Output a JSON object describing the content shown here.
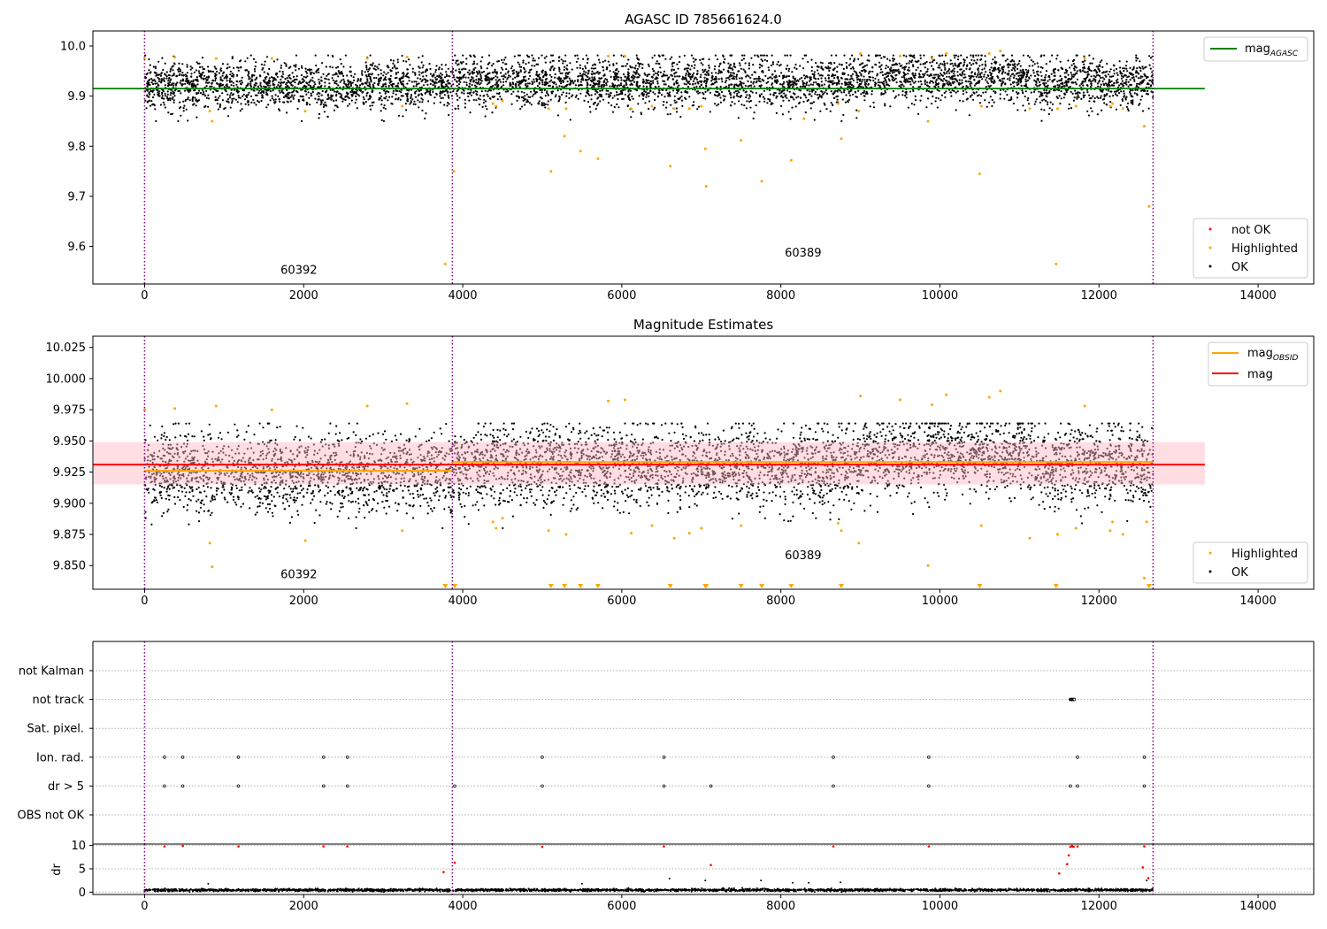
{
  "colors": {
    "ok": "#000000",
    "highlighted": "#ffa500",
    "not_ok": "#ff0000",
    "agasc_line": "#008000",
    "obsid_line": "#ffa500",
    "mag_line": "#ff0000",
    "obs_divider": "#800080",
    "band": "#ffb6c1",
    "grid": "#b0b0b0"
  },
  "chart_data": [
    {
      "type": "scatter",
      "title": "AGASC ID 785661624.0",
      "xlim": [
        -650,
        14700
      ],
      "ylim": [
        9.525,
        10.03
      ],
      "xticks": [
        0,
        2000,
        4000,
        6000,
        8000,
        10000,
        12000,
        14000
      ],
      "xtick_labels": [
        "0",
        "2000",
        "4000",
        "6000",
        "8000",
        "10000",
        "12000",
        "14000"
      ],
      "yticks": [
        9.6,
        9.7,
        9.8,
        9.9,
        10.0
      ],
      "ytick_labels": [
        "9.6",
        "9.7",
        "9.8",
        "9.9",
        "10.0"
      ],
      "obs_boundaries": [
        0,
        3870,
        12680
      ],
      "obs_labels": [
        {
          "text": "60392",
          "x": 1940,
          "y": 9.545
        },
        {
          "text": "60389",
          "x": 8280,
          "y": 9.58
        }
      ],
      "hlines": [
        {
          "name": "mag_AGASC",
          "y": 9.915,
          "x0": -650,
          "x1": 13330,
          "color": "#008000"
        }
      ],
      "ok_points": {
        "x_range": [
          0,
          12680
        ],
        "center": 9.925,
        "spread": 0.075
      },
      "highlighted_points": [
        [
          0,
          9.975
        ],
        [
          380,
          9.978
        ],
        [
          820,
          9.87
        ],
        [
          850,
          9.85
        ],
        [
          900,
          9.975
        ],
        [
          1600,
          9.975
        ],
        [
          2020,
          9.87
        ],
        [
          2800,
          9.975
        ],
        [
          3240,
          9.88
        ],
        [
          3300,
          9.978
        ],
        [
          3780,
          9.565
        ],
        [
          3890,
          9.75
        ],
        [
          4380,
          9.885
        ],
        [
          4420,
          9.88
        ],
        [
          4500,
          9.89
        ],
        [
          5080,
          9.875
        ],
        [
          5110,
          9.75
        ],
        [
          5280,
          9.82
        ],
        [
          5300,
          9.875
        ],
        [
          5480,
          9.79
        ],
        [
          5700,
          9.775
        ],
        [
          5830,
          9.98
        ],
        [
          6040,
          9.98
        ],
        [
          6120,
          9.875
        ],
        [
          6380,
          9.88
        ],
        [
          6610,
          9.76
        ],
        [
          6660,
          9.875
        ],
        [
          6850,
          9.875
        ],
        [
          7000,
          9.88
        ],
        [
          7050,
          9.795
        ],
        [
          7060,
          9.72
        ],
        [
          7500,
          9.812
        ],
        [
          7760,
          9.73
        ],
        [
          8130,
          9.772
        ],
        [
          8290,
          9.855
        ],
        [
          8720,
          9.885
        ],
        [
          8760,
          9.815
        ],
        [
          8980,
          9.87
        ],
        [
          9000,
          9.985
        ],
        [
          9500,
          9.98
        ],
        [
          9850,
          9.85
        ],
        [
          9900,
          9.975
        ],
        [
          10080,
          9.985
        ],
        [
          10500,
          9.745
        ],
        [
          10520,
          9.88
        ],
        [
          10620,
          9.985
        ],
        [
          10760,
          9.99
        ],
        [
          11130,
          9.875
        ],
        [
          11460,
          9.565
        ],
        [
          11480,
          9.875
        ],
        [
          11710,
          9.88
        ],
        [
          11820,
          9.975
        ],
        [
          12140,
          9.88
        ],
        [
          12170,
          9.885
        ],
        [
          12300,
          9.875
        ],
        [
          12570,
          9.84
        ],
        [
          12630,
          9.68
        ]
      ],
      "legend": {
        "lines": [
          {
            "label": "mag",
            "sub": "AGASC",
            "color": "#008000"
          }
        ],
        "markers": [
          {
            "label": "not OK",
            "color": "#ff0000"
          },
          {
            "label": "Highlighted",
            "color": "#ffa500"
          },
          {
            "label": "OK",
            "color": "#000000"
          }
        ]
      }
    },
    {
      "type": "scatter",
      "title": "Magnitude Estimates",
      "xlim": [
        -650,
        14700
      ],
      "ylim": [
        9.831,
        10.034
      ],
      "xticks": [
        0,
        2000,
        4000,
        6000,
        8000,
        10000,
        12000,
        14000
      ],
      "xtick_labels": [
        "0",
        "2000",
        "4000",
        "6000",
        "8000",
        "10000",
        "12000",
        "14000"
      ],
      "yticks": [
        9.85,
        9.875,
        9.9,
        9.925,
        9.95,
        9.975,
        10.0,
        10.025
      ],
      "ytick_labels": [
        "9.850",
        "9.875",
        "9.900",
        "9.925",
        "9.950",
        "9.975",
        "10.000",
        "10.025"
      ],
      "obs_boundaries": [
        0,
        3870,
        12680
      ],
      "obs_labels": [
        {
          "text": "60392",
          "x": 1940,
          "y": 9.84
        },
        {
          "text": "60389",
          "x": 8280,
          "y": 9.855
        }
      ],
      "band": {
        "y0": 9.915,
        "y1": 9.949,
        "x0": -650,
        "x1": 13330
      },
      "hlines": [
        {
          "name": "mag",
          "y": 9.931,
          "x0": -650,
          "x1": 13330,
          "color": "#ff0000"
        },
        {
          "name": "mag_OBSID_1",
          "y": 9.926,
          "x0": 0,
          "x1": 3870,
          "color": "#ffa500"
        },
        {
          "name": "mag_OBSID_2",
          "y": 9.933,
          "x0": 3870,
          "x1": 12680,
          "color": "#ffa500"
        }
      ],
      "ok_points": {
        "x_range": [
          0,
          12680
        ],
        "center": 9.928,
        "spread": 0.048
      },
      "highlighted_points": [
        [
          0,
          9.975
        ],
        [
          380,
          9.976
        ],
        [
          820,
          9.868
        ],
        [
          850,
          9.849
        ],
        [
          900,
          9.978
        ],
        [
          1600,
          9.975
        ],
        [
          2020,
          9.87
        ],
        [
          2800,
          9.978
        ],
        [
          3240,
          9.878
        ],
        [
          3300,
          9.98
        ],
        [
          4380,
          9.885
        ],
        [
          4420,
          9.88
        ],
        [
          4500,
          9.888
        ],
        [
          5080,
          9.878
        ],
        [
          5300,
          9.875
        ],
        [
          5830,
          9.982
        ],
        [
          6040,
          9.983
        ],
        [
          6120,
          9.876
        ],
        [
          6380,
          9.882
        ],
        [
          6660,
          9.872
        ],
        [
          6850,
          9.876
        ],
        [
          7000,
          9.88
        ],
        [
          7500,
          9.882
        ],
        [
          8720,
          9.884
        ],
        [
          8760,
          9.878
        ],
        [
          8980,
          9.868
        ],
        [
          9000,
          9.986
        ],
        [
          9500,
          9.983
        ],
        [
          9850,
          9.85
        ],
        [
          9900,
          9.979
        ],
        [
          10080,
          9.987
        ],
        [
          10520,
          9.882
        ],
        [
          10620,
          9.985
        ],
        [
          10760,
          9.99
        ],
        [
          11130,
          9.872
        ],
        [
          11480,
          9.875
        ],
        [
          11710,
          9.88
        ],
        [
          11820,
          9.978
        ],
        [
          12140,
          9.878
        ],
        [
          12170,
          9.885
        ],
        [
          12300,
          9.875
        ],
        [
          12570,
          9.84
        ],
        [
          12600,
          9.885
        ]
      ],
      "out_of_range_markers": [
        3780,
        3900,
        5110,
        5280,
        5480,
        5700,
        6610,
        7050,
        7060,
        7500,
        7760,
        8130,
        8760,
        10500,
        11460,
        12630
      ],
      "legend": {
        "lines": [
          {
            "label": "mag",
            "sub": "OBSID",
            "color": "#ffa500"
          },
          {
            "label": "mag",
            "sub": "",
            "color": "#ff0000"
          }
        ],
        "markers": [
          {
            "label": "Highlighted",
            "color": "#ffa500"
          },
          {
            "label": "OK",
            "color": "#000000"
          }
        ]
      }
    },
    {
      "type": "scatter",
      "title": "",
      "xlim": [
        -650,
        14700
      ],
      "categories": [
        "not Kalman",
        "not track",
        "Sat. pixel.",
        "Ion. rad.",
        "dr > 5",
        "OBS not OK"
      ],
      "obs_boundaries": [
        0,
        3870,
        12680
      ],
      "flags": {
        "not Kalman": [],
        "not track": [
          11640,
          11650,
          11660,
          11670,
          11680,
          11690
        ],
        "Sat. pixel.": [],
        "Ion. rad.": [
          250,
          480,
          1180,
          2250,
          2550,
          5000,
          6530,
          8660,
          9860,
          11730,
          12570
        ],
        "dr > 5": [
          250,
          480,
          1180,
          2250,
          2550,
          3900,
          5000,
          6530,
          7120,
          8660,
          9860,
          11640,
          11730,
          12570
        ],
        "OBS not OK": []
      }
    },
    {
      "type": "scatter",
      "title": "",
      "xlim": [
        -650,
        14700
      ],
      "ylim": [
        -0.5,
        10.3
      ],
      "ylabel": "dr",
      "xticks": [
        0,
        2000,
        4000,
        6000,
        8000,
        10000,
        12000,
        14000
      ],
      "xtick_labels": [
        "0",
        "2000",
        "4000",
        "6000",
        "8000",
        "10000",
        "12000",
        "14000"
      ],
      "yticks": [
        0,
        5,
        10
      ],
      "ytick_labels": [
        "0",
        "5",
        "10"
      ],
      "obs_boundaries": [
        0,
        3870,
        12680
      ],
      "ok_points": {
        "x_range": [
          0,
          12680
        ],
        "center": 0.45,
        "spread": 0.4
      },
      "ok_extra": [
        [
          800,
          1.8
        ],
        [
          5500,
          1.8
        ],
        [
          6600,
          2.9
        ],
        [
          7050,
          2.5
        ],
        [
          7750,
          2.5
        ],
        [
          8150,
          2.0
        ],
        [
          8350,
          2.0
        ],
        [
          8750,
          2.1
        ],
        [
          12600,
          2.5
        ]
      ],
      "not_ok_points": [
        [
          250,
          9.8
        ],
        [
          480,
          9.9
        ],
        [
          1180,
          9.8
        ],
        [
          2250,
          9.8
        ],
        [
          2550,
          9.8
        ],
        [
          3760,
          4.3
        ],
        [
          3900,
          6.3
        ],
        [
          5000,
          9.7
        ],
        [
          6530,
          9.8
        ],
        [
          7120,
          5.8
        ],
        [
          8660,
          9.8
        ],
        [
          9860,
          9.8
        ],
        [
          11500,
          4.0
        ],
        [
          11600,
          6.0
        ],
        [
          11620,
          7.9
        ],
        [
          11640,
          9.7
        ],
        [
          11650,
          9.8
        ],
        [
          11660,
          9.9
        ],
        [
          11670,
          9.8
        ],
        [
          11680,
          9.7
        ],
        [
          11730,
          9.8
        ],
        [
          12550,
          5.3
        ],
        [
          12570,
          9.8
        ],
        [
          12620,
          3.0
        ]
      ]
    }
  ]
}
